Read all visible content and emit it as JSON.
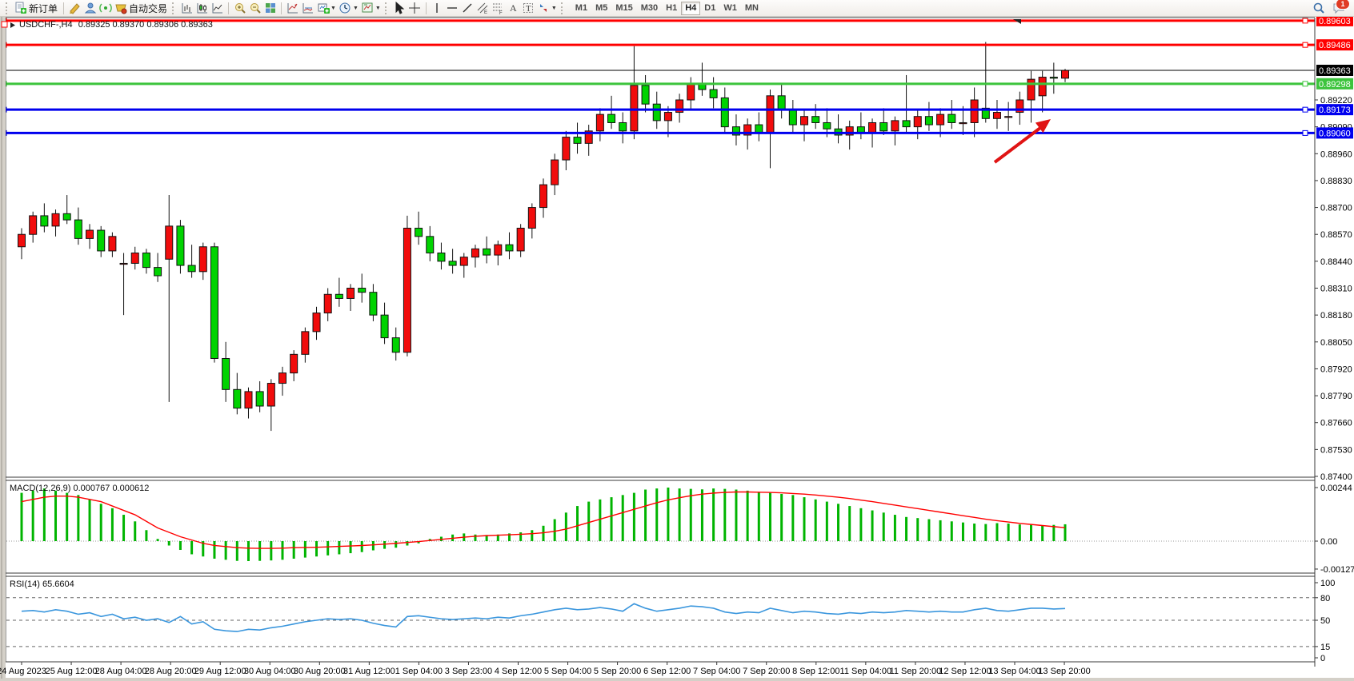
{
  "toolbar": {
    "new_order_label": "新订单",
    "auto_trading_label": "自动交易",
    "timeframes": [
      "M1",
      "M5",
      "M15",
      "M30",
      "H1",
      "H4",
      "D1",
      "W1",
      "MN"
    ],
    "active_timeframe": "H4",
    "notification_count": "1"
  },
  "chart": {
    "title_text": "USDCHF-,H4",
    "ohlc_text": "0.89325 0.89370 0.89306 0.89363"
  },
  "macd_panel": {
    "label": "MACD(12,26,9)",
    "value_main": "0.000767",
    "value_signal": "0.000612",
    "axis_labels": [
      "0.00244",
      "0.00",
      "-0.001273"
    ]
  },
  "rsi_panel": {
    "label": "RSI(14)",
    "value": "65.6604",
    "axis_labels": [
      "100",
      "80",
      "50",
      "15",
      "0"
    ],
    "level_lines": [
      80,
      50,
      15
    ]
  },
  "price_axis": {
    "visible_labels": [
      "0.89220",
      "0.89090",
      "0.88960",
      "0.88830",
      "0.88700",
      "0.88570",
      "0.88440",
      "0.88310",
      "0.88180",
      "0.88050",
      "0.87920",
      "0.87790",
      "0.87660",
      "0.87530",
      "0.87400"
    ]
  },
  "time_axis": {
    "labels": [
      "24 Aug 2023",
      "25 Aug 12:00",
      "28 Aug 04:00",
      "28 Aug 20:00",
      "29 Aug 12:00",
      "30 Aug 04:00",
      "30 Aug 20:00",
      "31 Aug 12:00",
      "1 Sep 04:00",
      "3 Sep 23:00",
      "4 Sep 12:00",
      "5 Sep 04:00",
      "5 Sep 20:00",
      "6 Sep 12:00",
      "7 Sep 04:00",
      "7 Sep 20:00",
      "8 Sep 12:00",
      "11 Sep 04:00",
      "11 Sep 20:00",
      "12 Sep 12:00",
      "13 Sep 04:00",
      "13 Sep 20:00"
    ]
  },
  "chart_data": {
    "type": "candlestick",
    "symbol": "USDCHF",
    "period": "H4",
    "colors": {
      "bull_candle": "#f10c0c",
      "bear_candle": "#00d300",
      "candle_outline": "#111111",
      "macd_histogram": "#00b400",
      "macd_signal": "#ff0000",
      "rsi_line": "#3a96dd",
      "current_price_tag": "#000000"
    },
    "current_price": 0.89363,
    "horizontal_lines": [
      {
        "price": 0.89603,
        "color": "#ff0000"
      },
      {
        "price": 0.89486,
        "color": "#ff0000"
      },
      {
        "price": 0.89298,
        "color": "#3cc43c"
      },
      {
        "price": 0.89173,
        "color": "#0000ee"
      },
      {
        "price": 0.8906,
        "color": "#0000ee"
      }
    ],
    "annotations": [
      {
        "type": "arrow",
        "color": "#e01414",
        "points_to_price": 0.8906
      }
    ],
    "candles": [
      [
        0.8851,
        0.886,
        0.8845,
        0.8857
      ],
      [
        0.8857,
        0.8868,
        0.8853,
        0.8866
      ],
      [
        0.8866,
        0.8872,
        0.8858,
        0.8861
      ],
      [
        0.8861,
        0.8869,
        0.8856,
        0.8867
      ],
      [
        0.8867,
        0.8876,
        0.8862,
        0.8864
      ],
      [
        0.8864,
        0.887,
        0.8852,
        0.8855
      ],
      [
        0.8855,
        0.8862,
        0.885,
        0.8859
      ],
      [
        0.8859,
        0.8861,
        0.8846,
        0.8849
      ],
      [
        0.8849,
        0.8858,
        0.8846,
        0.8856
      ],
      [
        0.8843,
        0.8848,
        0.8818,
        0.8843
      ],
      [
        0.8843,
        0.8851,
        0.884,
        0.8848
      ],
      [
        0.8848,
        0.885,
        0.8838,
        0.8841
      ],
      [
        0.8841,
        0.8848,
        0.8834,
        0.8837
      ],
      [
        0.8845,
        0.8876,
        0.8776,
        0.8861
      ],
      [
        0.8861,
        0.8864,
        0.8838,
        0.8842
      ],
      [
        0.8842,
        0.8852,
        0.8836,
        0.8839
      ],
      [
        0.8839,
        0.8853,
        0.8835,
        0.8851
      ],
      [
        0.8851,
        0.8853,
        0.8795,
        0.8797
      ],
      [
        0.8797,
        0.8805,
        0.8776,
        0.8782
      ],
      [
        0.8782,
        0.879,
        0.877,
        0.8773
      ],
      [
        0.8773,
        0.8783,
        0.8768,
        0.8781
      ],
      [
        0.8781,
        0.8786,
        0.8771,
        0.8774
      ],
      [
        0.8774,
        0.8787,
        0.8762,
        0.8785
      ],
      [
        0.8785,
        0.8793,
        0.8779,
        0.879
      ],
      [
        0.879,
        0.8801,
        0.8786,
        0.8799
      ],
      [
        0.8799,
        0.8812,
        0.8795,
        0.881
      ],
      [
        0.881,
        0.8822,
        0.8806,
        0.8819
      ],
      [
        0.8819,
        0.8831,
        0.8815,
        0.8828
      ],
      [
        0.8828,
        0.8836,
        0.8822,
        0.8826
      ],
      [
        0.8826,
        0.8833,
        0.882,
        0.8831
      ],
      [
        0.8831,
        0.8838,
        0.8824,
        0.8829
      ],
      [
        0.8829,
        0.8833,
        0.8815,
        0.8818
      ],
      [
        0.8818,
        0.8824,
        0.8804,
        0.8807
      ],
      [
        0.8807,
        0.8812,
        0.8796,
        0.88
      ],
      [
        0.88,
        0.8866,
        0.8798,
        0.886
      ],
      [
        0.886,
        0.8868,
        0.8852,
        0.8856
      ],
      [
        0.8856,
        0.8861,
        0.8844,
        0.8848
      ],
      [
        0.8848,
        0.8853,
        0.884,
        0.8844
      ],
      [
        0.8844,
        0.885,
        0.8838,
        0.8842
      ],
      [
        0.8842,
        0.8848,
        0.8836,
        0.8846
      ],
      [
        0.8846,
        0.8852,
        0.8841,
        0.885
      ],
      [
        0.885,
        0.8856,
        0.8843,
        0.8847
      ],
      [
        0.8847,
        0.8854,
        0.8842,
        0.8852
      ],
      [
        0.8852,
        0.8858,
        0.8845,
        0.8849
      ],
      [
        0.8849,
        0.8862,
        0.8846,
        0.886
      ],
      [
        0.886,
        0.8872,
        0.8855,
        0.887
      ],
      [
        0.887,
        0.8884,
        0.8865,
        0.8881
      ],
      [
        0.8881,
        0.8896,
        0.8876,
        0.8893
      ],
      [
        0.8893,
        0.8907,
        0.8888,
        0.8904
      ],
      [
        0.8904,
        0.8911,
        0.8896,
        0.8901
      ],
      [
        0.8901,
        0.891,
        0.8895,
        0.8907
      ],
      [
        0.8907,
        0.8918,
        0.8902,
        0.8915
      ],
      [
        0.8915,
        0.8924,
        0.8908,
        0.8911
      ],
      [
        0.8911,
        0.8916,
        0.8901,
        0.8907
      ],
      [
        0.8907,
        0.8948,
        0.8903,
        0.8929
      ],
      [
        0.8929,
        0.8934,
        0.8916,
        0.892
      ],
      [
        0.892,
        0.8926,
        0.8908,
        0.8912
      ],
      [
        0.8912,
        0.8919,
        0.8904,
        0.8916
      ],
      [
        0.8916,
        0.8925,
        0.8911,
        0.8922
      ],
      [
        0.8922,
        0.8933,
        0.8917,
        0.893
      ],
      [
        0.893,
        0.894,
        0.8924,
        0.8927
      ],
      [
        0.8927,
        0.8933,
        0.8918,
        0.8923
      ],
      [
        0.8923,
        0.8928,
        0.8906,
        0.8909
      ],
      [
        0.8909,
        0.8915,
        0.89,
        0.8905
      ],
      [
        0.8905,
        0.8913,
        0.8898,
        0.891
      ],
      [
        0.891,
        0.8916,
        0.8902,
        0.8906
      ],
      [
        0.8906,
        0.8927,
        0.8889,
        0.8924
      ],
      [
        0.8924,
        0.893,
        0.8913,
        0.8917
      ],
      [
        0.8917,
        0.8922,
        0.8906,
        0.891
      ],
      [
        0.891,
        0.8917,
        0.8902,
        0.8914
      ],
      [
        0.8914,
        0.892,
        0.8908,
        0.8911
      ],
      [
        0.8911,
        0.8918,
        0.8904,
        0.8908
      ],
      [
        0.8908,
        0.8915,
        0.8901,
        0.8905
      ],
      [
        0.8905,
        0.8912,
        0.8898,
        0.8909
      ],
      [
        0.8909,
        0.8916,
        0.8903,
        0.8906
      ],
      [
        0.8906,
        0.8913,
        0.8899,
        0.8911
      ],
      [
        0.8911,
        0.8918,
        0.8905,
        0.8907
      ],
      [
        0.8907,
        0.8914,
        0.89,
        0.8912
      ],
      [
        0.8912,
        0.8934,
        0.8906,
        0.8909
      ],
      [
        0.8909,
        0.8917,
        0.8903,
        0.8914
      ],
      [
        0.8914,
        0.8921,
        0.8907,
        0.891
      ],
      [
        0.891,
        0.8918,
        0.8904,
        0.8915
      ],
      [
        0.8915,
        0.8922,
        0.8908,
        0.8911
      ],
      [
        0.8911,
        0.8919,
        0.8905,
        0.8911
      ],
      [
        0.8911,
        0.8928,
        0.8904,
        0.8922
      ],
      [
        0.8918,
        0.895,
        0.8911,
        0.8913
      ],
      [
        0.8913,
        0.8922,
        0.8908,
        0.8916
      ],
      [
        0.8914,
        0.8921,
        0.8907,
        0.8914
      ],
      [
        0.8916,
        0.8926,
        0.891,
        0.8922
      ],
      [
        0.8922,
        0.8936,
        0.8911,
        0.8932
      ],
      [
        0.8924,
        0.8936,
        0.8916,
        0.8933
      ],
      [
        0.8933,
        0.894,
        0.8925,
        0.89325
      ],
      [
        0.89325,
        0.8937,
        0.89306,
        0.89363
      ]
    ],
    "macd_main": [
      0.0022,
      0.0023,
      0.0024,
      0.0023,
      0.0022,
      0.0021,
      0.0019,
      0.0017,
      0.0015,
      0.0012,
      0.0009,
      0.0005,
      0.0001,
      -0.0002,
      -0.0004,
      -0.0006,
      -0.0007,
      -0.0008,
      -0.00085,
      -0.0009,
      -0.00091,
      -0.0009,
      -0.00088,
      -0.00085,
      -0.0008,
      -0.00075,
      -0.0007,
      -0.00065,
      -0.0006,
      -0.00055,
      -0.0005,
      -0.00042,
      -0.00035,
      -0.0003,
      -0.0002,
      -0.0001,
      0.0001,
      0.0002,
      0.0003,
      0.00035,
      0.0003,
      0.00028,
      0.0003,
      0.00035,
      0.0004,
      0.0005,
      0.0007,
      0.001,
      0.0013,
      0.0016,
      0.0018,
      0.0019,
      0.002,
      0.0021,
      0.0022,
      0.00235,
      0.0024,
      0.00244,
      0.0024,
      0.00238,
      0.00236,
      0.0024,
      0.00238,
      0.00235,
      0.0023,
      0.00225,
      0.0022,
      0.00215,
      0.0021,
      0.002,
      0.0019,
      0.0018,
      0.0017,
      0.0016,
      0.0015,
      0.0014,
      0.0013,
      0.0012,
      0.0011,
      0.00105,
      0.001,
      0.00095,
      0.0009,
      0.00085,
      0.0008,
      0.00078,
      0.00082,
      0.0008,
      0.00076,
      0.00074,
      0.00072,
      0.00074,
      0.000767
    ],
    "macd_signal": [
      0.0018,
      0.0019,
      0.002,
      0.00205,
      0.00205,
      0.002,
      0.0019,
      0.0018,
      0.0016,
      0.0014,
      0.0012,
      0.0009,
      0.0006,
      0.0004,
      0.0002,
      5e-05,
      -0.0001,
      -0.0002,
      -0.00025,
      -0.0003,
      -0.00032,
      -0.00033,
      -0.00033,
      -0.00032,
      -0.0003,
      -0.00029,
      -0.00028,
      -0.00026,
      -0.00024,
      -0.00022,
      -0.0002,
      -0.00017,
      -0.00014,
      -0.0001,
      -6e-05,
      -2e-05,
      3e-05,
      8e-05,
      0.00013,
      0.00018,
      0.00022,
      0.00025,
      0.00027,
      0.00029,
      0.00031,
      0.00034,
      0.00038,
      0.00045,
      0.00055,
      0.0007,
      0.00085,
      0.001,
      0.00115,
      0.0013,
      0.00145,
      0.0016,
      0.00175,
      0.00188,
      0.00198,
      0.00207,
      0.00214,
      0.00219,
      0.00222,
      0.00224,
      0.00224,
      0.00223,
      0.00222,
      0.0022,
      0.00217,
      0.00214,
      0.0021,
      0.00205,
      0.002,
      0.00194,
      0.00187,
      0.0018,
      0.00172,
      0.00164,
      0.00156,
      0.00148,
      0.0014,
      0.00132,
      0.00124,
      0.00116,
      0.00108,
      0.001,
      0.00093,
      0.00087,
      0.00081,
      0.00076,
      0.00071,
      0.00066,
      0.000612
    ],
    "rsi": [
      62,
      63,
      61,
      64,
      62,
      58,
      60,
      55,
      58,
      52,
      54,
      50,
      52,
      47,
      55,
      45,
      48,
      38,
      36,
      35,
      38,
      37,
      40,
      42,
      45,
      48,
      50,
      52,
      51,
      52,
      50,
      46,
      43,
      41,
      55,
      56,
      54,
      52,
      51,
      52,
      53,
      52,
      54,
      53,
      56,
      58,
      61,
      64,
      66,
      64,
      65,
      67,
      65,
      62,
      72,
      66,
      62,
      64,
      66,
      69,
      68,
      66,
      61,
      59,
      61,
      60,
      66,
      63,
      60,
      62,
      61,
      59,
      58,
      60,
      59,
      61,
      60,
      61,
      63,
      62,
      61,
      62,
      61,
      61,
      64,
      66,
      63,
      62,
      64,
      66,
      66,
      65,
      65.66
    ]
  }
}
